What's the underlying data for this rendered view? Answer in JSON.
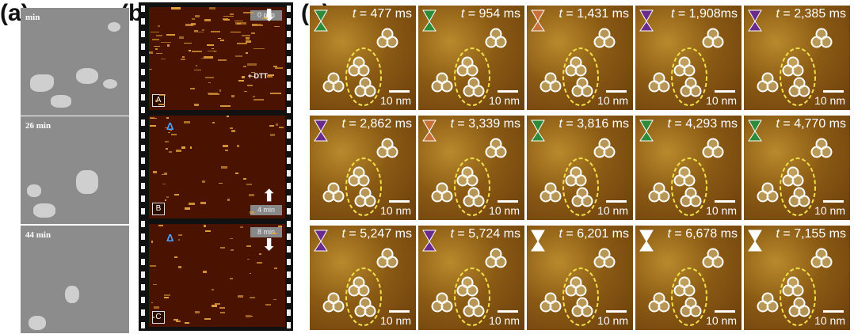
{
  "labels": {
    "a": "(a)",
    "b": "(b)",
    "c": "(c)"
  },
  "panel_a": {
    "times": [
      "min",
      "26 min",
      "44 min"
    ]
  },
  "panel_b": {
    "frames": [
      {
        "letter": "A",
        "time": "0 min",
        "arrow": "down",
        "note": "+ DTT"
      },
      {
        "letter": "B",
        "time": "4 min",
        "arrow": "up",
        "note": ""
      },
      {
        "letter": "C",
        "time": "8 min",
        "arrow": "down",
        "note": ""
      }
    ],
    "delta": "Δ"
  },
  "panel_c": {
    "scale": "10 nm",
    "times": [
      "477 ms",
      "954 ms",
      "1,431 ms",
      "1,908ms",
      "2,385 ms",
      "2,862 ms",
      "3,339 ms",
      "3,816 ms",
      "4,293 ms",
      "4,770 ms",
      "5,247 ms",
      "5,724 ms",
      "6,201 ms",
      "6,678 ms",
      "7,155 ms"
    ],
    "t_prefix": "t = ",
    "marker_colors": {
      "green": "#2e8b3a",
      "orange": "#c8703a",
      "purple": "#6a2c8c",
      "white": "#ffffff"
    }
  }
}
